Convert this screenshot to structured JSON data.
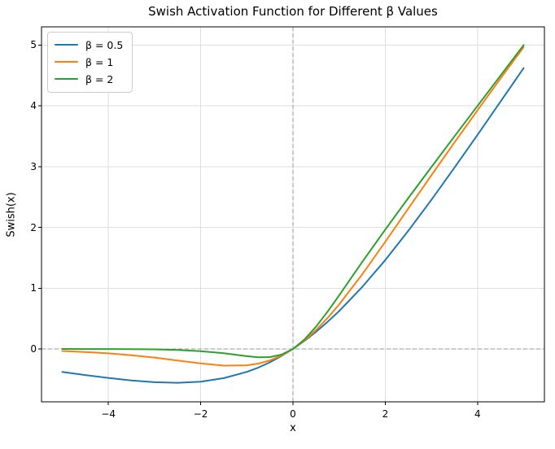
{
  "title": "Swish Activation Function for Different β Values",
  "chart_data": {
    "type": "line",
    "title": "Swish Activation Function for Different β Values",
    "xlabel": "x",
    "ylabel": "Swish(x)",
    "xlim": [
      -5.45,
      5.45
    ],
    "ylim": [
      -0.87,
      5.3
    ],
    "xticks": [
      -4,
      -2,
      0,
      2,
      4
    ],
    "yticks": [
      0,
      1,
      2,
      3,
      4,
      5
    ],
    "grid": true,
    "grid_color": "#dedede",
    "legend_position": "upper left",
    "reference_lines": {
      "vertical_x": 0,
      "horizontal_y": 0,
      "style": "dashed",
      "color": "#999999"
    },
    "x": [
      -5,
      -4.5,
      -4,
      -3.5,
      -3,
      -2.5,
      -2,
      -1.5,
      -1,
      -0.75,
      -0.5,
      -0.25,
      0,
      0.25,
      0.5,
      0.75,
      1,
      1.5,
      2,
      2.5,
      3,
      3.5,
      4,
      4.5,
      5
    ],
    "series": [
      {
        "name": "β = 0.5",
        "color": "#1f77b4",
        "values": [
          -0.379,
          -0.429,
          -0.477,
          -0.518,
          -0.547,
          -0.557,
          -0.538,
          -0.481,
          -0.378,
          -0.306,
          -0.219,
          -0.117,
          0,
          0.133,
          0.281,
          0.445,
          0.622,
          1.019,
          1.462,
          1.943,
          2.453,
          2.982,
          3.523,
          4.071,
          4.621
        ]
      },
      {
        "name": "β = 1",
        "color": "#ff7f0e",
        "values": [
          -0.033,
          -0.05,
          -0.072,
          -0.103,
          -0.142,
          -0.19,
          -0.238,
          -0.274,
          -0.269,
          -0.241,
          -0.189,
          -0.109,
          0,
          0.141,
          0.311,
          0.509,
          0.731,
          1.226,
          1.762,
          2.31,
          2.858,
          3.397,
          3.928,
          4.451,
          4.967
        ]
      },
      {
        "name": "β = 2",
        "color": "#2ca02c",
        "values": [
          0,
          -0.001,
          -0.001,
          -0.003,
          -0.007,
          -0.017,
          -0.036,
          -0.071,
          -0.119,
          -0.137,
          -0.134,
          -0.094,
          0,
          0.156,
          0.366,
          0.613,
          0.881,
          1.429,
          1.964,
          2.483,
          2.993,
          3.497,
          3.999,
          4.499,
          5.0
        ]
      }
    ]
  }
}
